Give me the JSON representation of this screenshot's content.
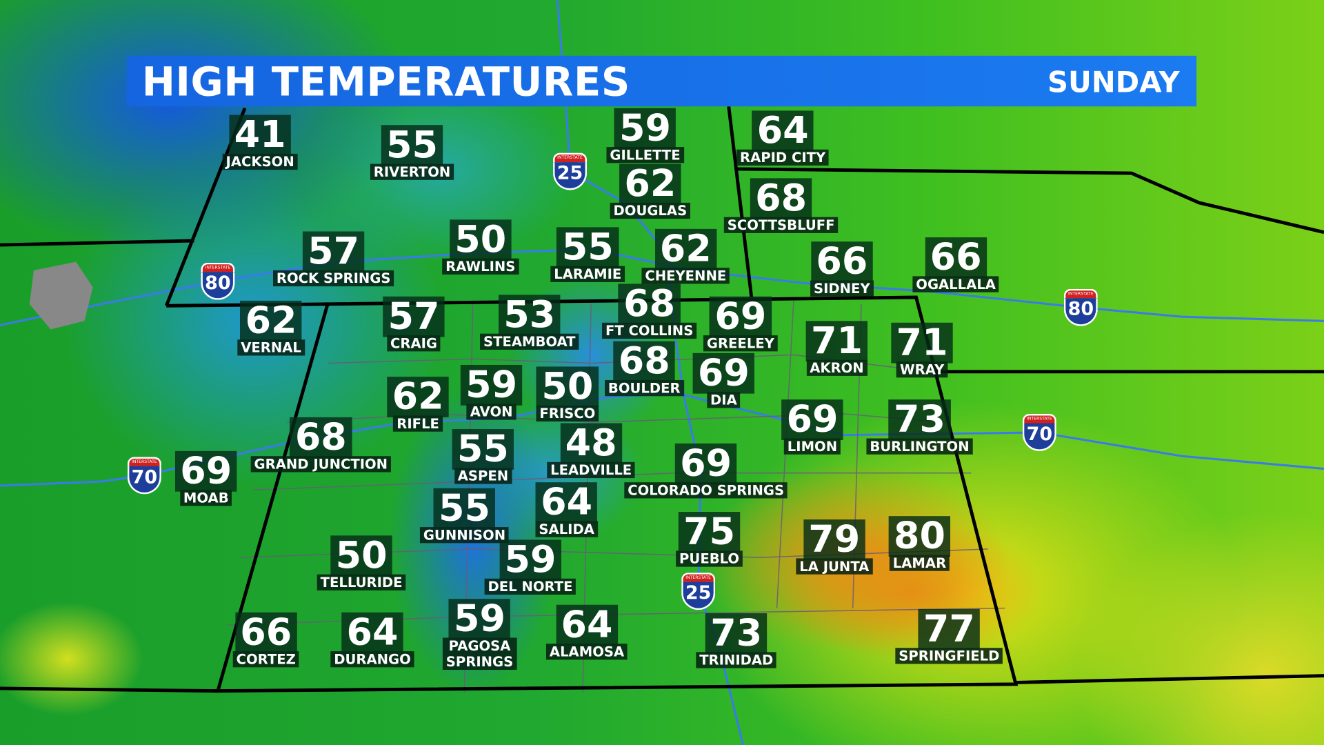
{
  "banner": {
    "title": "HIGH TEMPERATURES",
    "day": "SUNDAY",
    "color": "#1b6fe8"
  },
  "cities": [
    {
      "name": "JACKSON",
      "high": "41"
    },
    {
      "name": "RIVERTON",
      "high": "55"
    },
    {
      "name": "GILLETTE",
      "high": "59"
    },
    {
      "name": "RAPID CITY",
      "high": "64"
    },
    {
      "name": "DOUGLAS",
      "high": "62"
    },
    {
      "name": "SCOTTSBLUFF",
      "high": "68"
    },
    {
      "name": "ROCK SPRINGS",
      "high": "57"
    },
    {
      "name": "RAWLINS",
      "high": "50"
    },
    {
      "name": "LARAMIE",
      "high": "55"
    },
    {
      "name": "CHEYENNE",
      "high": "62"
    },
    {
      "name": "SIDNEY",
      "high": "66"
    },
    {
      "name": "OGALLALA",
      "high": "66"
    },
    {
      "name": "VERNAL",
      "high": "62"
    },
    {
      "name": "CRAIG",
      "high": "57"
    },
    {
      "name": "STEAMBOAT",
      "high": "53"
    },
    {
      "name": "FT COLLINS",
      "high": "68"
    },
    {
      "name": "GREELEY",
      "high": "69"
    },
    {
      "name": "AKRON",
      "high": "71"
    },
    {
      "name": "WRAY",
      "high": "71"
    },
    {
      "name": "BOULDER",
      "high": "68"
    },
    {
      "name": "DIA",
      "high": "69"
    },
    {
      "name": "RIFLE",
      "high": "62"
    },
    {
      "name": "AVON",
      "high": "59"
    },
    {
      "name": "FRISCO",
      "high": "50"
    },
    {
      "name": "LIMON",
      "high": "69"
    },
    {
      "name": "BURLINGTON",
      "high": "73"
    },
    {
      "name": "GRAND JUNCTION",
      "high": "68"
    },
    {
      "name": "MOAB",
      "high": "69"
    },
    {
      "name": "ASPEN",
      "high": "55"
    },
    {
      "name": "LEADVILLE",
      "high": "48"
    },
    {
      "name": "COLORADO SPRINGS",
      "high": "69"
    },
    {
      "name": "GUNNISON",
      "high": "55"
    },
    {
      "name": "SALIDA",
      "high": "64"
    },
    {
      "name": "PUEBLO",
      "high": "75"
    },
    {
      "name": "LA JUNTA",
      "high": "79"
    },
    {
      "name": "LAMAR",
      "high": "80"
    },
    {
      "name": "TELLURIDE",
      "high": "50"
    },
    {
      "name": "DEL NORTE",
      "high": "59"
    },
    {
      "name": "CORTEZ",
      "high": "66"
    },
    {
      "name": "DURANGO",
      "high": "64"
    },
    {
      "name": "PAGOSA\nSPRINGS",
      "high": "59"
    },
    {
      "name": "ALAMOSA",
      "high": "64"
    },
    {
      "name": "TRINIDAD",
      "high": "73"
    },
    {
      "name": "SPRINGFIELD",
      "high": "77"
    }
  ],
  "interstates": [
    {
      "label": "INTERSTATE",
      "number": "25"
    },
    {
      "label": "INTERSTATE",
      "number": "80"
    },
    {
      "label": "INTERSTATE",
      "number": "80"
    },
    {
      "label": "INTERSTATE",
      "number": "70"
    },
    {
      "label": "INTERSTATE",
      "number": "70"
    },
    {
      "label": "INTERSTATE",
      "number": "25"
    }
  ]
}
